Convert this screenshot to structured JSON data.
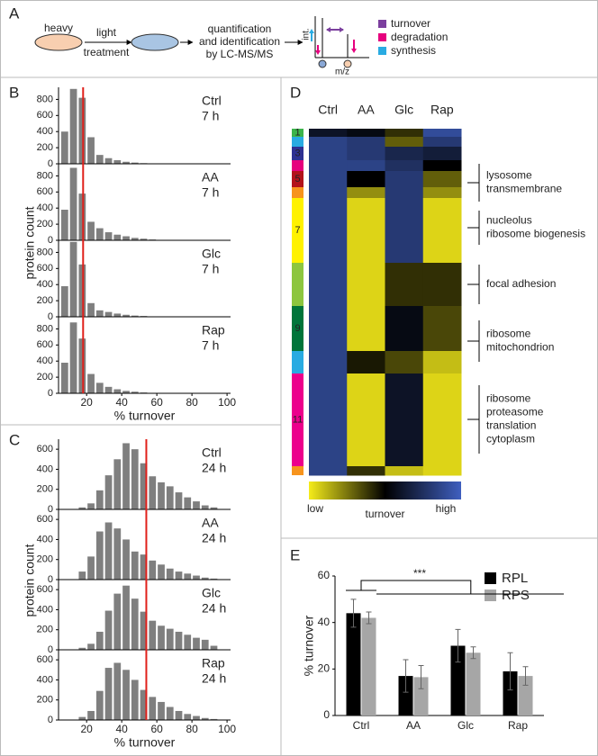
{
  "panel_labels": [
    "A",
    "B",
    "C",
    "D",
    "E"
  ],
  "schematic": {
    "start": "heavy",
    "treatment": [
      "light",
      "treatment"
    ],
    "analysis": [
      "quantification",
      "and identification",
      "by LC-MS/MS"
    ],
    "spectrum": {
      "y_label": "int.",
      "x_label": "m/z"
    },
    "legend": [
      {
        "label": "turnover",
        "color": "#7b3f9e"
      },
      {
        "label": "degradation",
        "color": "#e6007e"
      },
      {
        "label": "synthesis",
        "color": "#29abe2"
      }
    ]
  },
  "chart_data": [
    {
      "type": "histogram",
      "ylabel": "protein count",
      "xlabel": "% turnover",
      "xlim": [
        4,
        102
      ],
      "xticks": [
        20,
        40,
        60,
        80,
        100
      ],
      "ylim": [
        0,
        950
      ],
      "yticks": [
        0,
        200,
        400,
        600,
        800
      ],
      "color": "#7f7f7f",
      "vline": 18,
      "vline_color": "#e0201b",
      "charts": [
        {
          "title": "Ctrl",
          "subtitle": "7 h",
          "bins": [
            5,
            10,
            15,
            20,
            25,
            30,
            35,
            40,
            45,
            50,
            55,
            60,
            65
          ],
          "values": [
            400,
            930,
            820,
            330,
            110,
            70,
            45,
            25,
            15,
            8,
            5,
            3
          ]
        },
        {
          "title": "AA",
          "subtitle": "7 h",
          "bins": [
            5,
            10,
            15,
            20,
            25,
            30,
            35,
            40,
            45,
            50,
            55,
            60,
            65
          ],
          "values": [
            380,
            900,
            580,
            230,
            150,
            100,
            70,
            50,
            30,
            20,
            10,
            5
          ]
        },
        {
          "title": "Glc",
          "subtitle": "7 h",
          "bins": [
            5,
            10,
            15,
            20,
            25,
            30,
            35,
            40,
            45,
            50,
            55,
            60,
            65
          ],
          "values": [
            380,
            930,
            650,
            170,
            80,
            60,
            40,
            25,
            15,
            10,
            5,
            3
          ]
        },
        {
          "title": "Rap",
          "subtitle": "7 h",
          "bins": [
            5,
            10,
            15,
            20,
            25,
            30,
            35,
            40,
            45,
            50,
            55,
            60,
            65
          ],
          "values": [
            380,
            880,
            680,
            240,
            130,
            80,
            50,
            30,
            20,
            10,
            5,
            3
          ]
        }
      ]
    },
    {
      "type": "histogram",
      "ylabel": "protein count",
      "xlabel": "% turnover",
      "xlim": [
        4,
        102
      ],
      "xticks": [
        20,
        40,
        60,
        80,
        100
      ],
      "ylim": [
        0,
        700
      ],
      "yticks": [
        0,
        200,
        400,
        600
      ],
      "color": "#7f7f7f",
      "vline": 54,
      "vline_color": "#e0201b",
      "charts": [
        {
          "title": "Ctrl",
          "subtitle": "24 h",
          "bins": [
            15,
            20,
            25,
            30,
            35,
            40,
            45,
            50,
            55,
            60,
            65,
            70,
            75,
            80,
            85,
            90,
            95
          ],
          "values": [
            20,
            60,
            190,
            340,
            500,
            660,
            600,
            460,
            330,
            270,
            230,
            170,
            120,
            80,
            40,
            20
          ]
        },
        {
          "title": "AA",
          "subtitle": "24 h",
          "bins": [
            15,
            20,
            25,
            30,
            35,
            40,
            45,
            50,
            55,
            60,
            65,
            70,
            75,
            80,
            85,
            90,
            95
          ],
          "values": [
            80,
            230,
            480,
            570,
            510,
            400,
            280,
            250,
            190,
            150,
            110,
            80,
            60,
            40,
            20,
            10
          ]
        },
        {
          "title": "Glc",
          "subtitle": "24 h",
          "bins": [
            15,
            20,
            25,
            30,
            35,
            40,
            45,
            50,
            55,
            60,
            65,
            70,
            75,
            80,
            85,
            90,
            95
          ],
          "values": [
            20,
            60,
            180,
            390,
            560,
            640,
            510,
            380,
            290,
            240,
            210,
            180,
            150,
            120,
            100,
            40
          ]
        },
        {
          "title": "Rap",
          "subtitle": "24 h",
          "bins": [
            15,
            20,
            25,
            30,
            35,
            40,
            45,
            50,
            55,
            60,
            65,
            70,
            75,
            80,
            85,
            90,
            95
          ],
          "values": [
            30,
            90,
            290,
            520,
            570,
            500,
            400,
            300,
            230,
            180,
            130,
            90,
            60,
            40,
            20,
            10
          ]
        }
      ]
    },
    {
      "type": "heatmap",
      "columns": [
        "Ctrl",
        "AA",
        "Glc",
        "Rap"
      ],
      "zlim": [
        0,
        1
      ],
      "clusters": {
        "labels": [
          "1",
          null,
          "3",
          null,
          "5",
          null,
          "7",
          null,
          "9",
          null,
          "11",
          null
        ],
        "sizes": [
          9,
          11,
          15,
          12,
          18,
          12,
          72,
          48,
          50,
          25,
          103,
          10
        ],
        "colors": [
          "#3cb44b",
          "#29abe2",
          "#2e3192",
          "#e6007e",
          "#b3121b",
          "#f7941d",
          "#fff200",
          "#8dc63f",
          "#00753a",
          "#29abe2",
          "#ec008c",
          "#f7941d"
        ]
      },
      "values": [
        [
          0.6,
          0.85,
          0.85,
          0.85,
          0.85,
          0.85,
          0.85,
          0.85,
          0.85,
          0.85,
          0.85,
          0.85
        ],
        [
          0.55,
          0.8,
          0.8,
          0.85,
          0.5,
          0.2,
          0.05,
          0.05,
          0.05,
          0.45,
          0.05,
          0.4
        ],
        [
          0.4,
          0.3,
          0.7,
          0.75,
          0.8,
          0.8,
          0.8,
          0.4,
          0.55,
          0.35,
          0.6,
          0.1
        ],
        [
          0.9,
          0.8,
          0.65,
          0.5,
          0.3,
          0.2,
          0.05,
          0.4,
          0.35,
          0.1,
          0.05,
          0.05
        ]
      ],
      "colorbar": {
        "low": "low",
        "label": "turnover",
        "high": "high",
        "colors": [
          "#f5ec1a",
          "#000000",
          "#3f5fbf"
        ]
      },
      "annotations": [
        [
          "lysosome",
          "transmembrane"
        ],
        [
          "nucleolus",
          "ribosome biogenesis"
        ],
        [
          "focal adhesion"
        ],
        [
          "ribosome",
          "mitochondrion"
        ],
        [
          "ribosome",
          "proteasome",
          "translation",
          "cytoplasm"
        ]
      ]
    },
    {
      "type": "bar",
      "ylabel": "% turnover",
      "categories": [
        "Ctrl",
        "AA",
        "Glc",
        "Rap"
      ],
      "series": [
        {
          "name": "RPL",
          "color": "#000000",
          "values": [
            44,
            17,
            30,
            19
          ],
          "errors": [
            6,
            7,
            7,
            8
          ]
        },
        {
          "name": "RPS",
          "color": "#a6a6a6",
          "values": [
            42,
            16.5,
            27,
            17
          ],
          "errors": [
            2.5,
            5,
            2.5,
            4
          ]
        }
      ],
      "ylim": [
        0,
        60
      ],
      "yticks": [
        0,
        20,
        40,
        60
      ],
      "annotation": "***"
    }
  ]
}
